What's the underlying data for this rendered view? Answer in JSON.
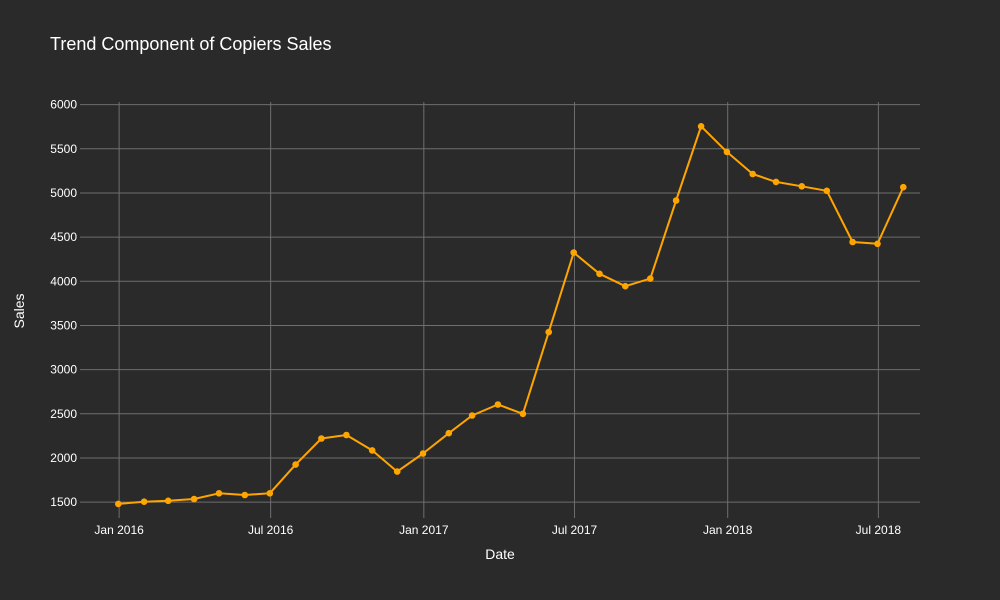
{
  "chart_data": {
    "type": "line",
    "title": "Trend Component of Copiers Sales",
    "xlabel": "Date",
    "ylabel": "Sales",
    "x_ticks": [
      {
        "date": "2016-01-01",
        "label": "Jan 2016"
      },
      {
        "date": "2016-07-01",
        "label": "Jul 2016"
      },
      {
        "date": "2017-01-01",
        "label": "Jan 2017"
      },
      {
        "date": "2017-07-01",
        "label": "Jul 2017"
      },
      {
        "date": "2018-01-01",
        "label": "Jan 2018"
      },
      {
        "date": "2018-07-01",
        "label": "Jul 2018"
      }
    ],
    "y_ticks": [
      1500,
      2000,
      2500,
      3000,
      3500,
      4000,
      4500,
      5000,
      5500,
      6000
    ],
    "xlim": [
      "2015-11-15",
      "2018-08-20"
    ],
    "ylim": [
      1320,
      6030
    ],
    "grid": true,
    "colors": {
      "line": "#ffa500",
      "background": "#2a2a2a",
      "grid": "#6e6e6e",
      "text": "#ffffff"
    },
    "series": [
      {
        "points": [
          {
            "x": "2015-12-31",
            "y": 1480
          },
          {
            "x": "2016-01-31",
            "y": 1505
          },
          {
            "x": "2016-02-29",
            "y": 1515
          },
          {
            "x": "2016-03-31",
            "y": 1535
          },
          {
            "x": "2016-04-30",
            "y": 1600
          },
          {
            "x": "2016-05-31",
            "y": 1580
          },
          {
            "x": "2016-06-30",
            "y": 1600
          },
          {
            "x": "2016-07-31",
            "y": 1925
          },
          {
            "x": "2016-08-31",
            "y": 2220
          },
          {
            "x": "2016-09-30",
            "y": 2260
          },
          {
            "x": "2016-10-31",
            "y": 2085
          },
          {
            "x": "2016-11-30",
            "y": 1845
          },
          {
            "x": "2016-12-31",
            "y": 2050
          },
          {
            "x": "2017-01-31",
            "y": 2280
          },
          {
            "x": "2017-02-28",
            "y": 2480
          },
          {
            "x": "2017-03-31",
            "y": 2605
          },
          {
            "x": "2017-04-30",
            "y": 2500
          },
          {
            "x": "2017-05-31",
            "y": 3425
          },
          {
            "x": "2017-06-30",
            "y": 4325
          },
          {
            "x": "2017-07-31",
            "y": 4085
          },
          {
            "x": "2017-08-31",
            "y": 3945
          },
          {
            "x": "2017-09-30",
            "y": 4030
          },
          {
            "x": "2017-10-31",
            "y": 4915
          },
          {
            "x": "2017-11-30",
            "y": 5755
          },
          {
            "x": "2017-12-31",
            "y": 5465
          },
          {
            "x": "2018-01-31",
            "y": 5215
          },
          {
            "x": "2018-02-28",
            "y": 5125
          },
          {
            "x": "2018-03-31",
            "y": 5075
          },
          {
            "x": "2018-04-30",
            "y": 5025
          },
          {
            "x": "2018-05-31",
            "y": 4445
          },
          {
            "x": "2018-06-30",
            "y": 4425
          },
          {
            "x": "2018-07-31",
            "y": 5065
          }
        ]
      }
    ]
  }
}
